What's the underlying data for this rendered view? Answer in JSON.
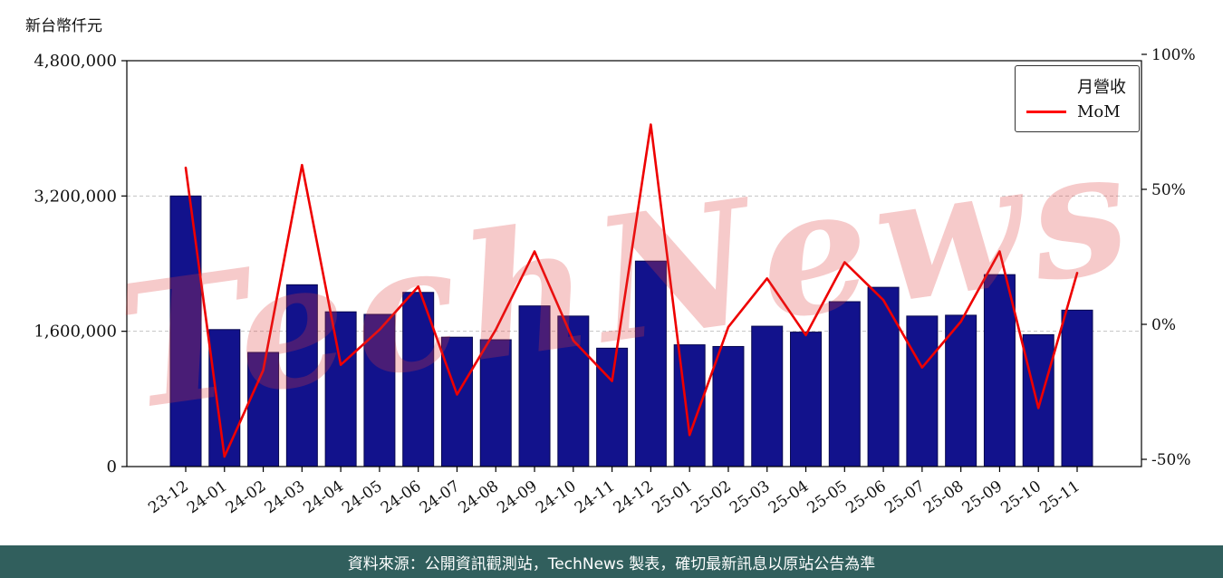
{
  "page": {
    "axis_title": "新台幣仟元",
    "watermark": "TechNews",
    "footer": "資料來源：公開資訊觀測站，TechNews 製表，確切最新訊息以原站公告為準"
  },
  "chart_data": {
    "type": "bar",
    "title": "新台幣仟元",
    "categories": [
      "23-12",
      "24-01",
      "24-02",
      "24-03",
      "24-04",
      "24-05",
      "24-06",
      "24-07",
      "24-08",
      "24-09",
      "24-10",
      "24-11",
      "24-12",
      "25-01",
      "25-02",
      "25-03",
      "25-04",
      "25-05",
      "25-06",
      "25-07",
      "25-08",
      "25-09",
      "25-10",
      "25-11"
    ],
    "series": [
      {
        "name": "月營收",
        "type": "bar",
        "axis": "left",
        "color": "#12128c",
        "values": [
          3200000,
          1620000,
          1350000,
          2150000,
          1830000,
          1800000,
          2060000,
          1530000,
          1500000,
          1900000,
          1780000,
          1400000,
          2430000,
          1440000,
          1420000,
          1660000,
          1590000,
          1950000,
          2120000,
          1780000,
          1790000,
          2270000,
          1560000,
          1850000
        ]
      },
      {
        "name": "MoM",
        "type": "line",
        "axis": "right",
        "color": "#ee0000",
        "values": [
          58,
          -49,
          -17,
          59,
          -15,
          -2,
          14,
          -26,
          -2,
          27,
          -6,
          -21,
          74,
          -41,
          -1,
          17,
          -4,
          23,
          9,
          -16,
          1,
          27,
          -31,
          19
        ]
      }
    ],
    "left_axis": {
      "label": "新台幣仟元",
      "range": [
        0,
        4800000
      ],
      "ticks": [
        {
          "v": 0,
          "label": "0"
        },
        {
          "v": 1600000,
          "label": "1,600,000"
        },
        {
          "v": 3200000,
          "label": "3,200,000"
        },
        {
          "v": 4800000,
          "label": "4,800,000"
        }
      ]
    },
    "right_axis": {
      "label": "MoM %",
      "range": [
        -52.5,
        102.5
      ],
      "ticks": [
        {
          "p": -50,
          "label": "-50%"
        },
        {
          "p": 0,
          "label": "0%"
        },
        {
          "p": 50,
          "label": "50%"
        },
        {
          "p": 100,
          "label": "100%"
        }
      ]
    },
    "legend": {
      "position": "top-right"
    },
    "grid": "horizontal-dashed"
  }
}
